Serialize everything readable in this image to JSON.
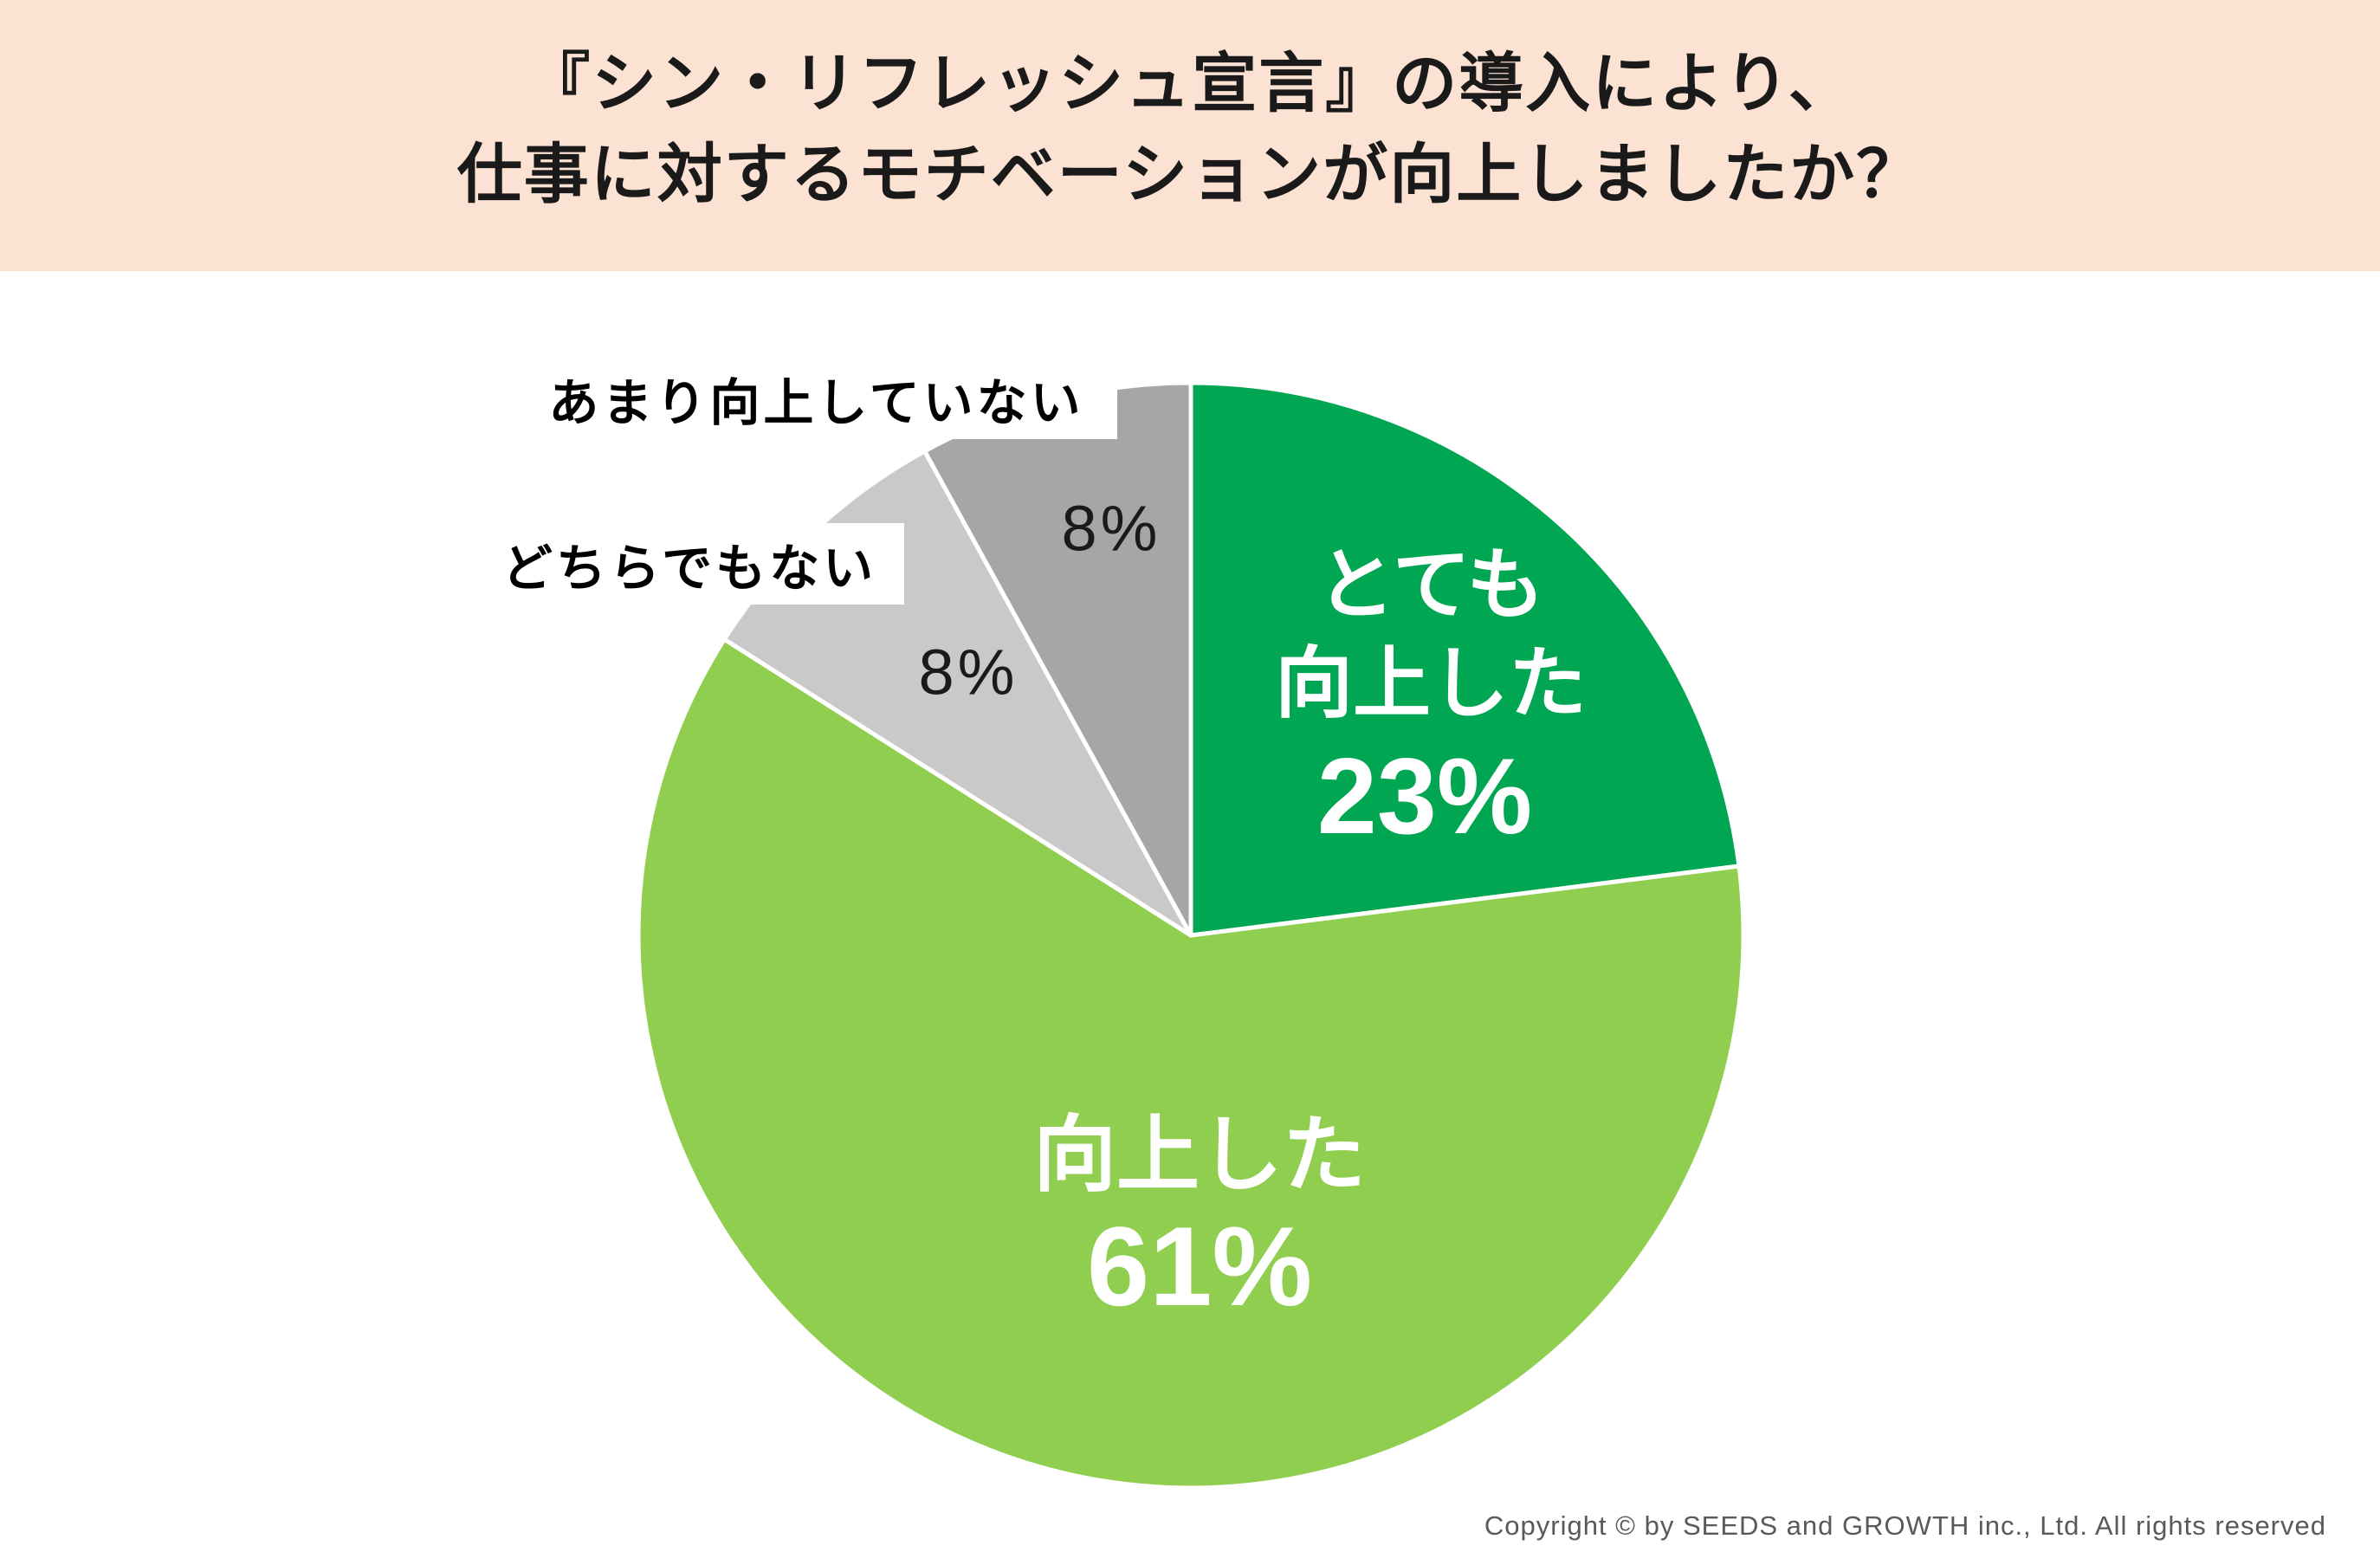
{
  "header": {
    "title_line1": "『シン・リフレッシュ宣言』の導入により、",
    "title_line2": "仕事に対するモチベーションが向上しましたか？",
    "background_color": "#FBE2D3",
    "text_color": "#1A1A1A"
  },
  "chart_data": {
    "type": "pie",
    "title": "『シン・リフレッシュ宣言』の導入により、仕事に対するモチベーションが向上しましたか？",
    "categories": [
      "とても向上した",
      "向上した",
      "どちらでもない",
      "あまり向上していない"
    ],
    "values": [
      23,
      61,
      8,
      8
    ],
    "unit": "%",
    "colors": [
      "#00A651",
      "#90CE4F",
      "#C9C9C9",
      "#A6A6A6"
    ],
    "slugs": [
      "very-improved",
      "improved",
      "neutral",
      "not-much-improved"
    ],
    "slice_border_color": "#FFFFFF",
    "start_angle": "top",
    "direction": "clockwise",
    "legend_position": "none",
    "labels": {
      "very_improved_line1": "とても",
      "very_improved_line2": "向上した",
      "very_improved_value": "23%",
      "improved_line1": "向上した",
      "improved_value": "61%",
      "neutral_value": "8%",
      "not_much_improved_value": "8%",
      "neutral_callout": "どちらでもない",
      "not_much_improved_callout": "あまり向上していない"
    }
  },
  "footer": {
    "copyright": "Copyright © by SEEDS and GROWTH inc., Ltd. All rights reserved",
    "text_color": "#595959"
  }
}
